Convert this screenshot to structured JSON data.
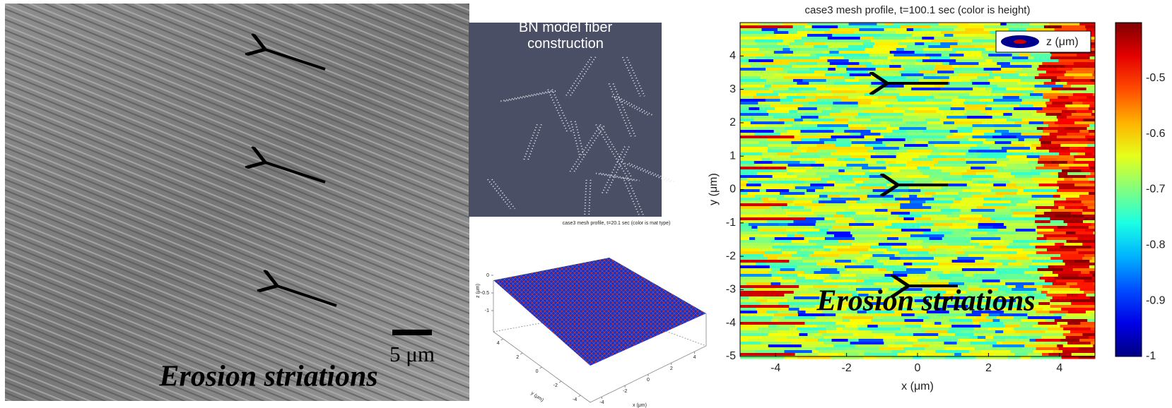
{
  "sem": {
    "scale_label": "5 μm",
    "caption": "Erosion striations"
  },
  "render": {
    "title": "BN model fiber construction"
  },
  "surface_plot": {
    "title": "case3 mesh profile, t=20.1 sec (color is mat type)",
    "xlabel": "x (μm)",
    "ylabel": "y (μm)",
    "zlabel": "z (μm)",
    "xticks": [
      -4,
      -2,
      0,
      2,
      4
    ],
    "yticks": [
      4,
      2,
      0,
      -2,
      -4
    ],
    "zticks": [
      0,
      -0.5,
      -1
    ]
  },
  "height_map": {
    "title": "case3 mesh profile, t=100.1 sec (color is height)",
    "xlabel": "x (μm)",
    "ylabel": "y (μm)",
    "xlim": [
      -5,
      5
    ],
    "ylim": [
      -5,
      5
    ],
    "xticks": [
      -4,
      -2,
      0,
      2,
      4
    ],
    "yticks": [
      4,
      3,
      2,
      1,
      0,
      -1,
      -2,
      -3,
      -4,
      -5
    ],
    "legend": "z (μm)",
    "caption": "Erosion striations",
    "colorbar": {
      "lim": [
        -1,
        -0.4
      ],
      "ticks": [
        -0.5,
        -0.6,
        -0.7,
        -0.8,
        -0.9,
        -1
      ]
    }
  }
}
